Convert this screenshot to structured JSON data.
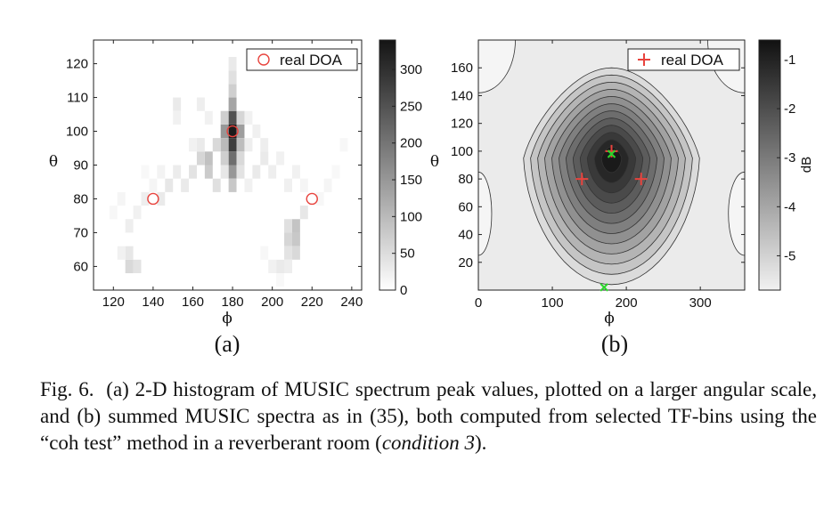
{
  "chart_data": [
    {
      "type": "heatmap",
      "panel_label": "(a)",
      "xlabel": "ϕ",
      "ylabel": "θ",
      "xlim": [
        110,
        245
      ],
      "ylim": [
        53,
        127
      ],
      "xticks": [
        "120",
        "140",
        "160",
        "180",
        "200",
        "220",
        "240"
      ],
      "yticks": [
        "60",
        "70",
        "80",
        "90",
        "100",
        "110",
        "120"
      ],
      "colorbar": {
        "min": 0,
        "max": 340,
        "ticks": [
          "0",
          "50",
          "100",
          "150",
          "200",
          "250",
          "300"
        ]
      },
      "legend": {
        "label": "real DOA",
        "marker": "red-circle",
        "position": "top-right"
      },
      "real_doa": [
        {
          "x": 180,
          "y": 100
        },
        {
          "x": 140,
          "y": 80
        },
        {
          "x": 220,
          "y": 80
        }
      ],
      "cell_size": {
        "phi": 4,
        "theta": 4
      },
      "cells": [
        {
          "x": 180,
          "y": 100,
          "v": 330
        },
        {
          "x": 180,
          "y": 96,
          "v": 280
        },
        {
          "x": 180,
          "y": 104,
          "v": 250
        },
        {
          "x": 180,
          "y": 92,
          "v": 210
        },
        {
          "x": 176,
          "y": 100,
          "v": 150
        },
        {
          "x": 184,
          "y": 100,
          "v": 140
        },
        {
          "x": 176,
          "y": 96,
          "v": 100
        },
        {
          "x": 184,
          "y": 96,
          "v": 95
        },
        {
          "x": 180,
          "y": 108,
          "v": 130
        },
        {
          "x": 180,
          "y": 112,
          "v": 70
        },
        {
          "x": 180,
          "y": 116,
          "v": 45
        },
        {
          "x": 180,
          "y": 120,
          "v": 30
        },
        {
          "x": 180,
          "y": 88,
          "v": 150
        },
        {
          "x": 180,
          "y": 84,
          "v": 80
        },
        {
          "x": 176,
          "y": 104,
          "v": 70
        },
        {
          "x": 184,
          "y": 104,
          "v": 60
        },
        {
          "x": 176,
          "y": 92,
          "v": 70
        },
        {
          "x": 184,
          "y": 92,
          "v": 55
        },
        {
          "x": 184,
          "y": 88,
          "v": 40
        },
        {
          "x": 176,
          "y": 88,
          "v": 35
        },
        {
          "x": 168,
          "y": 92,
          "v": 90
        },
        {
          "x": 168,
          "y": 88,
          "v": 75
        },
        {
          "x": 164,
          "y": 92,
          "v": 60
        },
        {
          "x": 172,
          "y": 96,
          "v": 55
        },
        {
          "x": 172,
          "y": 84,
          "v": 45
        },
        {
          "x": 160,
          "y": 88,
          "v": 40
        },
        {
          "x": 164,
          "y": 96,
          "v": 30
        },
        {
          "x": 156,
          "y": 84,
          "v": 30
        },
        {
          "x": 152,
          "y": 88,
          "v": 28
        },
        {
          "x": 148,
          "y": 84,
          "v": 35
        },
        {
          "x": 144,
          "y": 80,
          "v": 30
        },
        {
          "x": 136,
          "y": 80,
          "v": 25
        },
        {
          "x": 132,
          "y": 76,
          "v": 20
        },
        {
          "x": 128,
          "y": 72,
          "v": 25
        },
        {
          "x": 124,
          "y": 80,
          "v": 15
        },
        {
          "x": 120,
          "y": 76,
          "v": 12
        },
        {
          "x": 128,
          "y": 60,
          "v": 55
        },
        {
          "x": 132,
          "y": 60,
          "v": 40
        },
        {
          "x": 128,
          "y": 64,
          "v": 35
        },
        {
          "x": 124,
          "y": 64,
          "v": 20
        },
        {
          "x": 152,
          "y": 108,
          "v": 30
        },
        {
          "x": 152,
          "y": 104,
          "v": 20
        },
        {
          "x": 164,
          "y": 108,
          "v": 25
        },
        {
          "x": 168,
          "y": 104,
          "v": 20
        },
        {
          "x": 192,
          "y": 100,
          "v": 22
        },
        {
          "x": 196,
          "y": 96,
          "v": 25
        },
        {
          "x": 196,
          "y": 92,
          "v": 30
        },
        {
          "x": 200,
          "y": 88,
          "v": 25
        },
        {
          "x": 204,
          "y": 92,
          "v": 20
        },
        {
          "x": 208,
          "y": 84,
          "v": 22
        },
        {
          "x": 212,
          "y": 88,
          "v": 20
        },
        {
          "x": 216,
          "y": 84,
          "v": 15
        },
        {
          "x": 212,
          "y": 72,
          "v": 85
        },
        {
          "x": 212,
          "y": 68,
          "v": 80
        },
        {
          "x": 208,
          "y": 68,
          "v": 60
        },
        {
          "x": 212,
          "y": 64,
          "v": 55
        },
        {
          "x": 208,
          "y": 72,
          "v": 45
        },
        {
          "x": 208,
          "y": 64,
          "v": 40
        },
        {
          "x": 204,
          "y": 60,
          "v": 30
        },
        {
          "x": 216,
          "y": 76,
          "v": 35
        },
        {
          "x": 200,
          "y": 60,
          "v": 20
        },
        {
          "x": 208,
          "y": 60,
          "v": 25
        },
        {
          "x": 196,
          "y": 64,
          "v": 12
        },
        {
          "x": 204,
          "y": 56,
          "v": 10
        },
        {
          "x": 228,
          "y": 84,
          "v": 15
        },
        {
          "x": 224,
          "y": 80,
          "v": 12
        },
        {
          "x": 236,
          "y": 96,
          "v": 12
        },
        {
          "x": 232,
          "y": 88,
          "v": 10
        },
        {
          "x": 188,
          "y": 96,
          "v": 25
        },
        {
          "x": 188,
          "y": 104,
          "v": 20
        },
        {
          "x": 192,
          "y": 88,
          "v": 30
        },
        {
          "x": 188,
          "y": 84,
          "v": 20
        },
        {
          "x": 160,
          "y": 96,
          "v": 20
        },
        {
          "x": 144,
          "y": 88,
          "v": 18
        },
        {
          "x": 140,
          "y": 84,
          "v": 15
        },
        {
          "x": 136,
          "y": 88,
          "v": 10
        }
      ]
    },
    {
      "type": "contour",
      "panel_label": "(b)",
      "xlabel": "ϕ",
      "ylabel": "θ",
      "xlim": [
        0,
        360
      ],
      "ylim": [
        0,
        180
      ],
      "xticks": [
        "0",
        "100",
        "200",
        "300"
      ],
      "yticks": [
        "20",
        "40",
        "60",
        "80",
        "100",
        "120",
        "140",
        "160"
      ],
      "colorbar": {
        "label": "dB",
        "min": -5.7,
        "max": -0.6,
        "ticks": [
          "-1",
          "-2",
          "-3",
          "-4",
          "-5"
        ]
      },
      "legend": {
        "label": "real DOA",
        "marker": "red-plus",
        "position": "top-right"
      },
      "peak": {
        "x": 180,
        "y": 95
      },
      "real_doa": [
        {
          "x": 180,
          "y": 100
        },
        {
          "x": 140,
          "y": 80
        },
        {
          "x": 220,
          "y": 80
        }
      ],
      "estimated_doa": [
        {
          "x": 180,
          "y": 98
        },
        {
          "x": 170,
          "y": 2
        }
      ],
      "contour_levels_db": [
        -5.2,
        -4.7,
        -4.3,
        -3.9,
        -3.5,
        -3.1,
        -2.7,
        -2.3,
        -1.9,
        -1.5,
        -1.1,
        -0.8
      ]
    }
  ],
  "caption": {
    "fig": "Fig. 6.",
    "text_1": "(a) 2-D histogram of MUSIC spectrum peak values, plotted on a larger angular scale, and (b) summed MUSIC spectra as in (35), both computed from selected TF-bins using the “coh test” method in a reverberant room (",
    "italic": "condition 3",
    "text_2": ")."
  }
}
